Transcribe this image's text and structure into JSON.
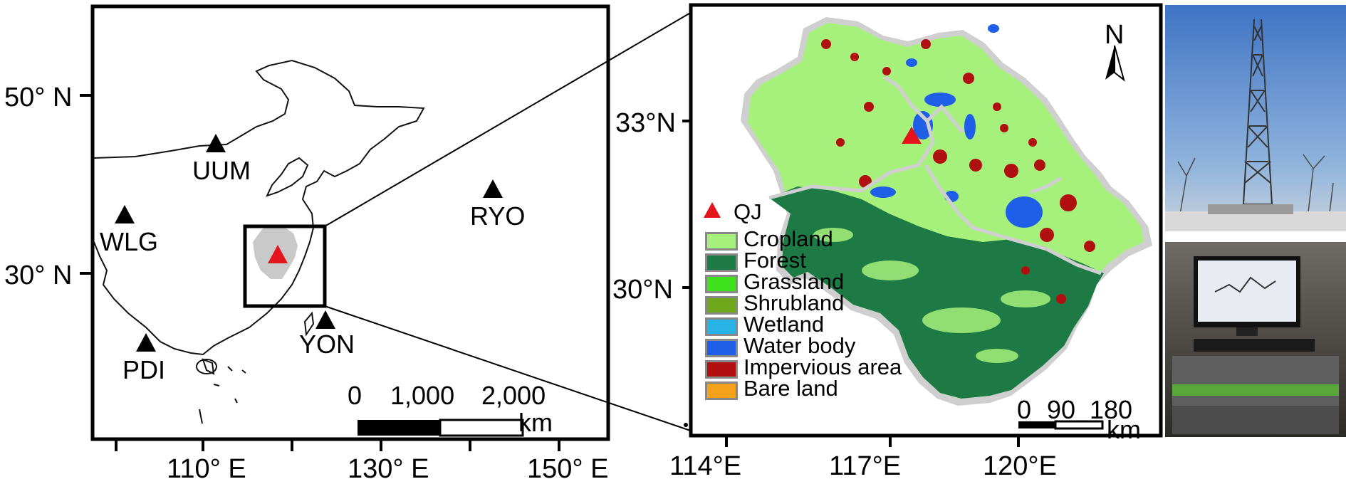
{
  "left_map": {
    "lat_labels": [
      "50° N",
      "30° N"
    ],
    "lon_labels": [
      "110° E",
      "130° E",
      "150° E"
    ],
    "stations": [
      "UUM",
      "WLG",
      "RYO",
      "PDI",
      "YON"
    ],
    "scale": {
      "ticks": [
        "0",
        "1,000",
        "2,000"
      ],
      "unit": "km"
    }
  },
  "right_map": {
    "north": "N",
    "lat_labels": [
      "33°N",
      "30°N"
    ],
    "lon_labels": [
      "114°E",
      "117°E",
      "120°E"
    ],
    "scale": {
      "ticks": [
        "0",
        "90",
        "180"
      ],
      "unit": "km"
    },
    "legend": [
      {
        "label": "QJ",
        "color": "#e3141b",
        "symbol": "triangle"
      },
      {
        "label": "Cropland",
        "color": "#a6f07c"
      },
      {
        "label": "Forest",
        "color": "#1e7a45"
      },
      {
        "label": "Grassland",
        "color": "#3fe01c"
      },
      {
        "label": "Shrubland",
        "color": "#6fa81a"
      },
      {
        "label": "Wetland",
        "color": "#27b3e6"
      },
      {
        "label": "Water body",
        "color": "#1f5fe8"
      },
      {
        "label": "Impervious area",
        "color": "#b01010"
      },
      {
        "label": "Bare land",
        "color": "#f5a21b"
      }
    ]
  },
  "colors": {
    "station": "#000000",
    "site": "#e3141b",
    "sky": "#5a86c6",
    "frame": "#000000"
  }
}
